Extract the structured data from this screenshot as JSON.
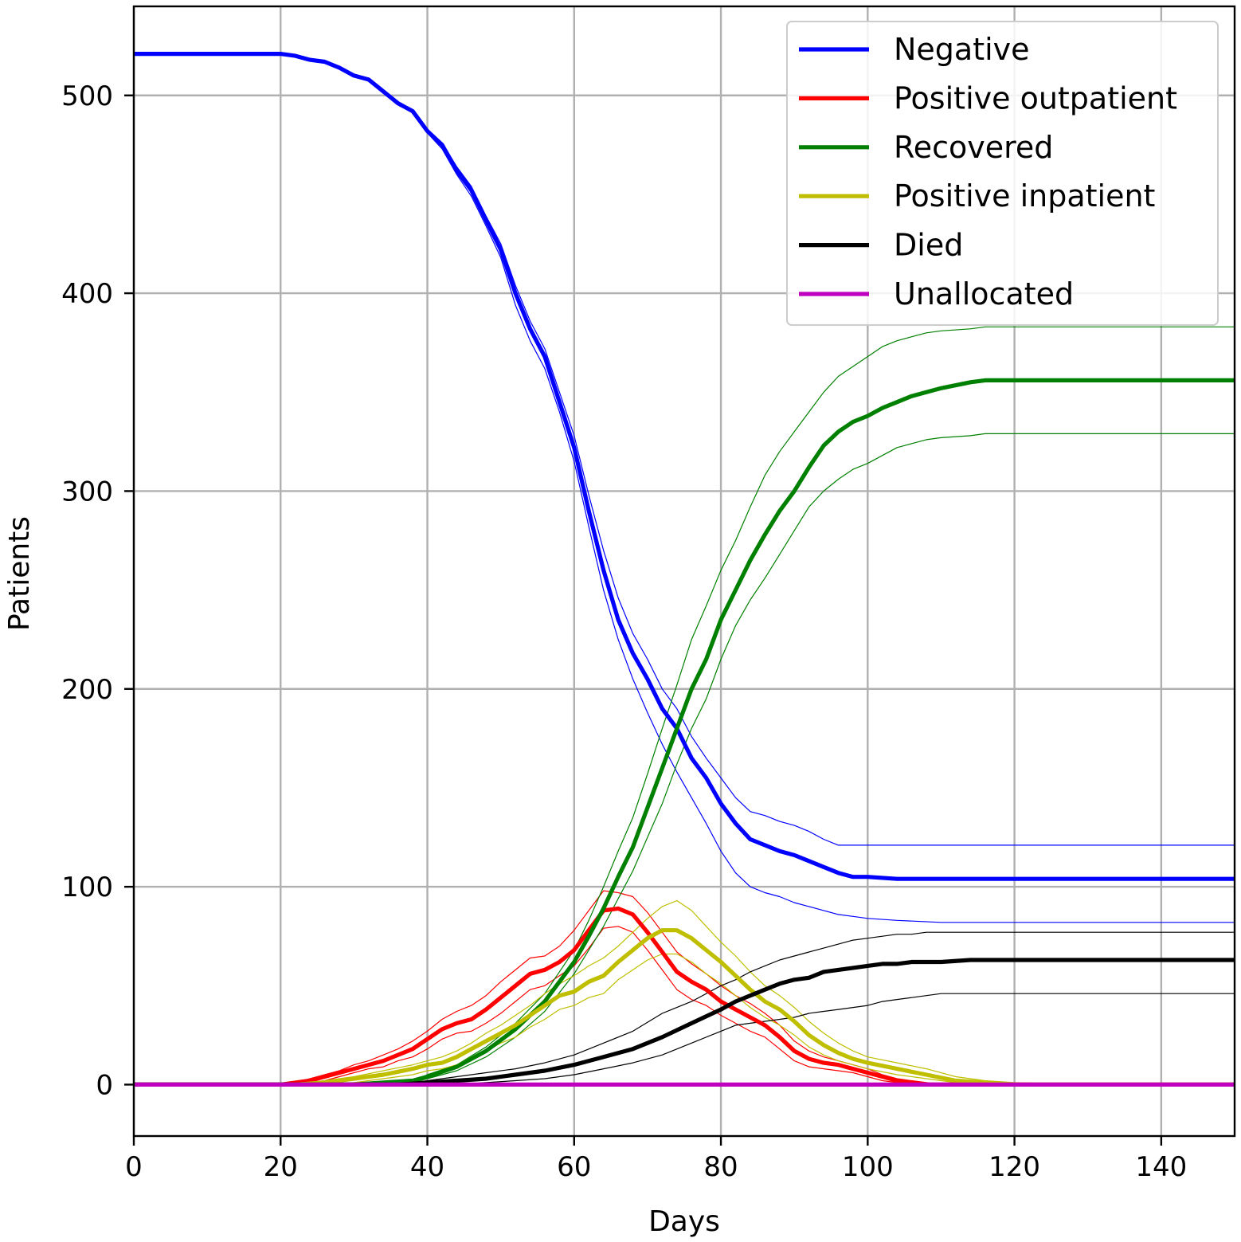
{
  "chart_data": {
    "type": "line",
    "xlabel": "Days",
    "ylabel": "Patients",
    "xlim": [
      0,
      150
    ],
    "ylim": [
      -26,
      545
    ],
    "xticks": [
      0,
      20,
      40,
      60,
      80,
      100,
      120,
      140
    ],
    "yticks": [
      0,
      100,
      200,
      300,
      400,
      500
    ],
    "grid": true,
    "legend_position": "top-right",
    "series": [
      {
        "name": "Negative",
        "color": "#0000ff",
        "x": [
          0,
          20,
          22,
          24,
          26,
          28,
          30,
          32,
          34,
          36,
          38,
          40,
          42,
          44,
          46,
          48,
          50,
          52,
          54,
          56,
          58,
          60,
          62,
          64,
          66,
          68,
          70,
          72,
          74,
          76,
          78,
          80,
          82,
          84,
          86,
          88,
          90,
          92,
          94,
          96,
          98,
          100,
          104,
          110,
          120,
          130,
          140,
          150
        ],
        "y": [
          521,
          521,
          520,
          518,
          517,
          514,
          510,
          508,
          502,
          496,
          492,
          482,
          475,
          462,
          452,
          437,
          422,
          400,
          382,
          368,
          345,
          322,
          290,
          260,
          235,
          218,
          205,
          190,
          180,
          165,
          155,
          142,
          132,
          124,
          121,
          118,
          116,
          113,
          110,
          107,
          105,
          105,
          104,
          104,
          104,
          104,
          104,
          104
        ],
        "upper": [
          521,
          521,
          520,
          518,
          517,
          514,
          510,
          508,
          502,
          496,
          492,
          483,
          476,
          464,
          454,
          439,
          425,
          404,
          386,
          372,
          350,
          328,
          298,
          270,
          246,
          228,
          215,
          200,
          190,
          176,
          165,
          155,
          145,
          138,
          136,
          133,
          131,
          128,
          124,
          121,
          121,
          121,
          121,
          121,
          121,
          121,
          121,
          121
        ],
        "lower": [
          521,
          521,
          520,
          518,
          517,
          514,
          510,
          508,
          502,
          496,
          492,
          481,
          473,
          460,
          449,
          434,
          418,
          394,
          376,
          362,
          340,
          315,
          282,
          250,
          225,
          205,
          188,
          172,
          158,
          145,
          132,
          118,
          107,
          100,
          97,
          95,
          92,
          90,
          88,
          86,
          85,
          84,
          83,
          82,
          82,
          82,
          82,
          82
        ]
      },
      {
        "name": "Positive outpatient",
        "color": "#ff0000",
        "x": [
          0,
          20,
          22,
          24,
          26,
          28,
          30,
          32,
          34,
          36,
          38,
          40,
          42,
          44,
          46,
          48,
          50,
          52,
          54,
          56,
          58,
          60,
          62,
          64,
          66,
          68,
          70,
          72,
          74,
          76,
          78,
          80,
          82,
          84,
          86,
          88,
          90,
          92,
          94,
          96,
          98,
          100,
          102,
          104,
          106,
          108,
          110,
          120,
          130,
          140,
          150
        ],
        "y": [
          0,
          0,
          1,
          2,
          4,
          6,
          8,
          10,
          12,
          15,
          18,
          23,
          28,
          31,
          33,
          38,
          44,
          50,
          56,
          58,
          62,
          68,
          78,
          88,
          89,
          86,
          77,
          67,
          57,
          52,
          48,
          42,
          38,
          34,
          30,
          24,
          17,
          13,
          11,
          10,
          8,
          6,
          4,
          2,
          1,
          0,
          0,
          0,
          0,
          0,
          0
        ],
        "upper": [
          0,
          0,
          1,
          3,
          5,
          7,
          10,
          12,
          15,
          18,
          22,
          27,
          33,
          37,
          40,
          45,
          52,
          58,
          64,
          65,
          70,
          78,
          88,
          98,
          97,
          95,
          87,
          77,
          67,
          61,
          56,
          50,
          45,
          41,
          36,
          30,
          22,
          17,
          14,
          12,
          10,
          8,
          5,
          3,
          2,
          1,
          0,
          0,
          0,
          0,
          0
        ],
        "lower": [
          0,
          0,
          0,
          1,
          2,
          4,
          6,
          8,
          9,
          12,
          14,
          18,
          23,
          26,
          27,
          31,
          36,
          42,
          48,
          50,
          55,
          60,
          69,
          79,
          80,
          77,
          68,
          58,
          48,
          43,
          40,
          35,
          31,
          27,
          24,
          18,
          12,
          9,
          8,
          7,
          6,
          4,
          2,
          1,
          0,
          0,
          0,
          0,
          0,
          0,
          0
        ]
      },
      {
        "name": "Recovered",
        "color": "#008000",
        "x": [
          0,
          30,
          34,
          38,
          40,
          44,
          48,
          52,
          56,
          60,
          62,
          64,
          66,
          68,
          70,
          72,
          74,
          76,
          78,
          80,
          82,
          84,
          86,
          88,
          90,
          92,
          94,
          96,
          98,
          100,
          102,
          104,
          106,
          108,
          110,
          114,
          116,
          120,
          130,
          140,
          150
        ],
        "y": [
          0,
          0,
          1,
          2,
          4,
          9,
          17,
          28,
          42,
          62,
          75,
          89,
          105,
          120,
          140,
          160,
          180,
          200,
          215,
          235,
          250,
          265,
          278,
          290,
          300,
          312,
          323,
          330,
          335,
          338,
          342,
          345,
          348,
          350,
          352,
          355,
          356,
          356,
          356,
          356,
          356
        ],
        "upper": [
          0,
          0,
          1,
          2,
          5,
          10,
          19,
          31,
          46,
          68,
          83,
          100,
          118,
          135,
          157,
          180,
          202,
          225,
          242,
          260,
          275,
          292,
          308,
          320,
          330,
          340,
          350,
          358,
          363,
          368,
          373,
          376,
          378,
          380,
          381,
          382,
          383,
          383,
          383,
          383,
          383
        ],
        "lower": [
          0,
          0,
          0,
          1,
          3,
          7,
          14,
          24,
          37,
          56,
          68,
          80,
          94,
          108,
          125,
          142,
          162,
          180,
          195,
          215,
          232,
          245,
          256,
          268,
          280,
          292,
          300,
          306,
          311,
          314,
          318,
          322,
          324,
          326,
          327,
          328,
          329,
          329,
          329,
          329,
          329
        ]
      },
      {
        "name": "Positive inpatient",
        "color": "#bfbf00",
        "x": [
          0,
          22,
          26,
          30,
          34,
          38,
          40,
          42,
          44,
          46,
          48,
          50,
          52,
          54,
          56,
          58,
          60,
          62,
          64,
          66,
          68,
          70,
          72,
          74,
          76,
          78,
          80,
          82,
          84,
          86,
          88,
          90,
          92,
          94,
          96,
          98,
          100,
          104,
          108,
          112,
          116,
          120,
          130,
          140,
          150
        ],
        "y": [
          0,
          0,
          1,
          3,
          5,
          8,
          10,
          11,
          14,
          18,
          22,
          26,
          30,
          35,
          40,
          45,
          47,
          52,
          55,
          62,
          68,
          74,
          78,
          78,
          74,
          68,
          62,
          55,
          48,
          42,
          38,
          32,
          25,
          20,
          16,
          13,
          11,
          8,
          5,
          2,
          1,
          0,
          0,
          0,
          0
        ],
        "upper": [
          0,
          0,
          2,
          4,
          7,
          10,
          12,
          14,
          17,
          21,
          26,
          30,
          35,
          40,
          46,
          51,
          55,
          60,
          64,
          70,
          77,
          84,
          90,
          93,
          88,
          80,
          72,
          65,
          57,
          50,
          45,
          39,
          32,
          26,
          21,
          17,
          14,
          11,
          8,
          4,
          2,
          1,
          0,
          0,
          0
        ],
        "lower": [
          0,
          0,
          0,
          1,
          3,
          5,
          7,
          8,
          10,
          14,
          17,
          21,
          24,
          29,
          33,
          38,
          40,
          44,
          46,
          53,
          58,
          63,
          66,
          66,
          62,
          56,
          51,
          45,
          39,
          34,
          30,
          25,
          19,
          15,
          12,
          10,
          8,
          5,
          3,
          1,
          0,
          0,
          0,
          0,
          0
        ]
      },
      {
        "name": "Died",
        "color": "#000000",
        "x": [
          0,
          36,
          40,
          44,
          48,
          52,
          56,
          60,
          64,
          68,
          72,
          76,
          80,
          82,
          84,
          86,
          88,
          90,
          92,
          94,
          96,
          98,
          100,
          102,
          104,
          106,
          108,
          110,
          114,
          120,
          130,
          140,
          150
        ],
        "y": [
          0,
          0,
          1,
          2,
          3,
          5,
          7,
          10,
          14,
          18,
          24,
          31,
          38,
          42,
          45,
          48,
          51,
          53,
          54,
          57,
          58,
          59,
          60,
          61,
          61,
          62,
          62,
          62,
          63,
          63,
          63,
          63,
          63
        ],
        "upper": [
          0,
          0,
          2,
          4,
          6,
          8,
          11,
          15,
          21,
          27,
          36,
          42,
          50,
          53,
          57,
          60,
          63,
          65,
          67,
          69,
          71,
          73,
          74,
          75,
          76,
          76,
          77,
          77,
          77,
          77,
          77,
          77,
          77
        ],
        "lower": [
          0,
          0,
          0,
          0,
          1,
          2,
          3,
          5,
          8,
          11,
          15,
          21,
          27,
          30,
          31,
          32,
          33,
          34,
          36,
          37,
          38,
          39,
          40,
          42,
          43,
          44,
          45,
          46,
          46,
          46,
          46,
          46,
          46
        ]
      },
      {
        "name": "Unallocated",
        "color": "#bf00bf",
        "x": [
          0,
          150
        ],
        "y": [
          0,
          0
        ]
      }
    ]
  }
}
